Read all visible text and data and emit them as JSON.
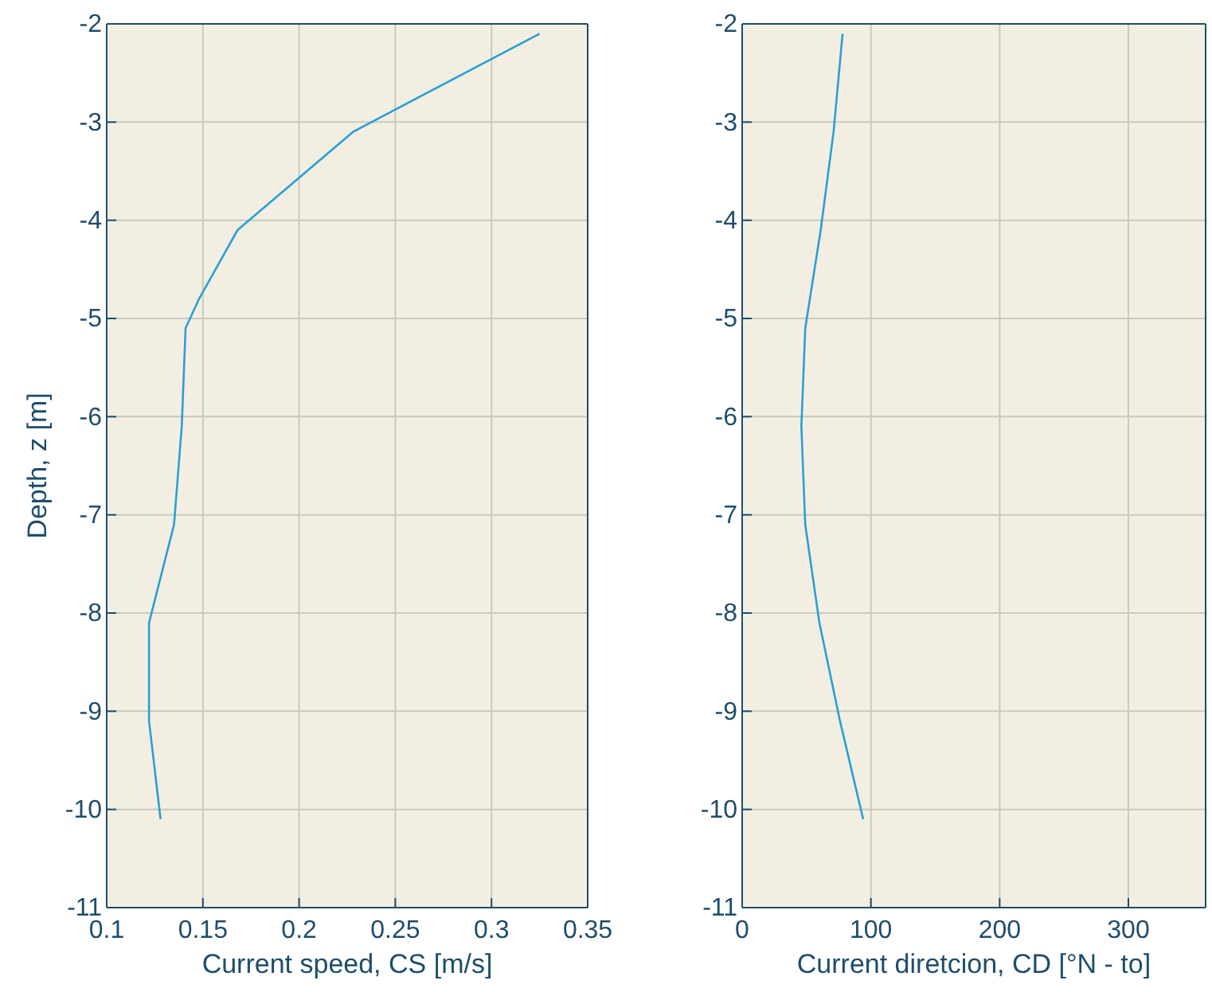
{
  "chart_data": [
    {
      "type": "line",
      "xlabel": "Current speed, CS [m/s]",
      "ylabel": "Depth, z [m]",
      "xlim": [
        0.1,
        0.35
      ],
      "xticks": [
        0.1,
        0.15,
        0.2,
        0.25,
        0.3,
        0.35
      ],
      "ylim": [
        -11,
        -2
      ],
      "yticks": [
        -11,
        -10,
        -9,
        -8,
        -7,
        -6,
        -5,
        -4,
        -3,
        -2
      ],
      "grid": true,
      "series": [
        {
          "color": "#2a9fd6",
          "x": [
            0.325,
            0.228,
            0.168,
            0.148,
            0.141,
            0.139,
            0.135,
            0.122,
            0.122,
            0.128
          ],
          "values": [
            -2.1,
            -3.1,
            -4.1,
            -4.8,
            -5.1,
            -6.1,
            -7.1,
            -8.1,
            -9.1,
            -10.1
          ]
        }
      ]
    },
    {
      "type": "line",
      "xlabel": "Current diretcion, CD [°N - to]",
      "xlim": [
        0,
        360
      ],
      "xticks": [
        0,
        100,
        200,
        300
      ],
      "ylim": [
        -11,
        -2
      ],
      "yticks": [
        -11,
        -10,
        -9,
        -8,
        -7,
        -6,
        -5,
        -4,
        -3,
        -2
      ],
      "grid": true,
      "series": [
        {
          "color": "#2a9fd6",
          "x": [
            78,
            71,
            61,
            49,
            46,
            49,
            60,
            76,
            94
          ],
          "values": [
            -2.1,
            -3.1,
            -4.1,
            -5.1,
            -6.1,
            -7.1,
            -8.1,
            -9.1,
            -10.1
          ]
        }
      ]
    }
  ]
}
